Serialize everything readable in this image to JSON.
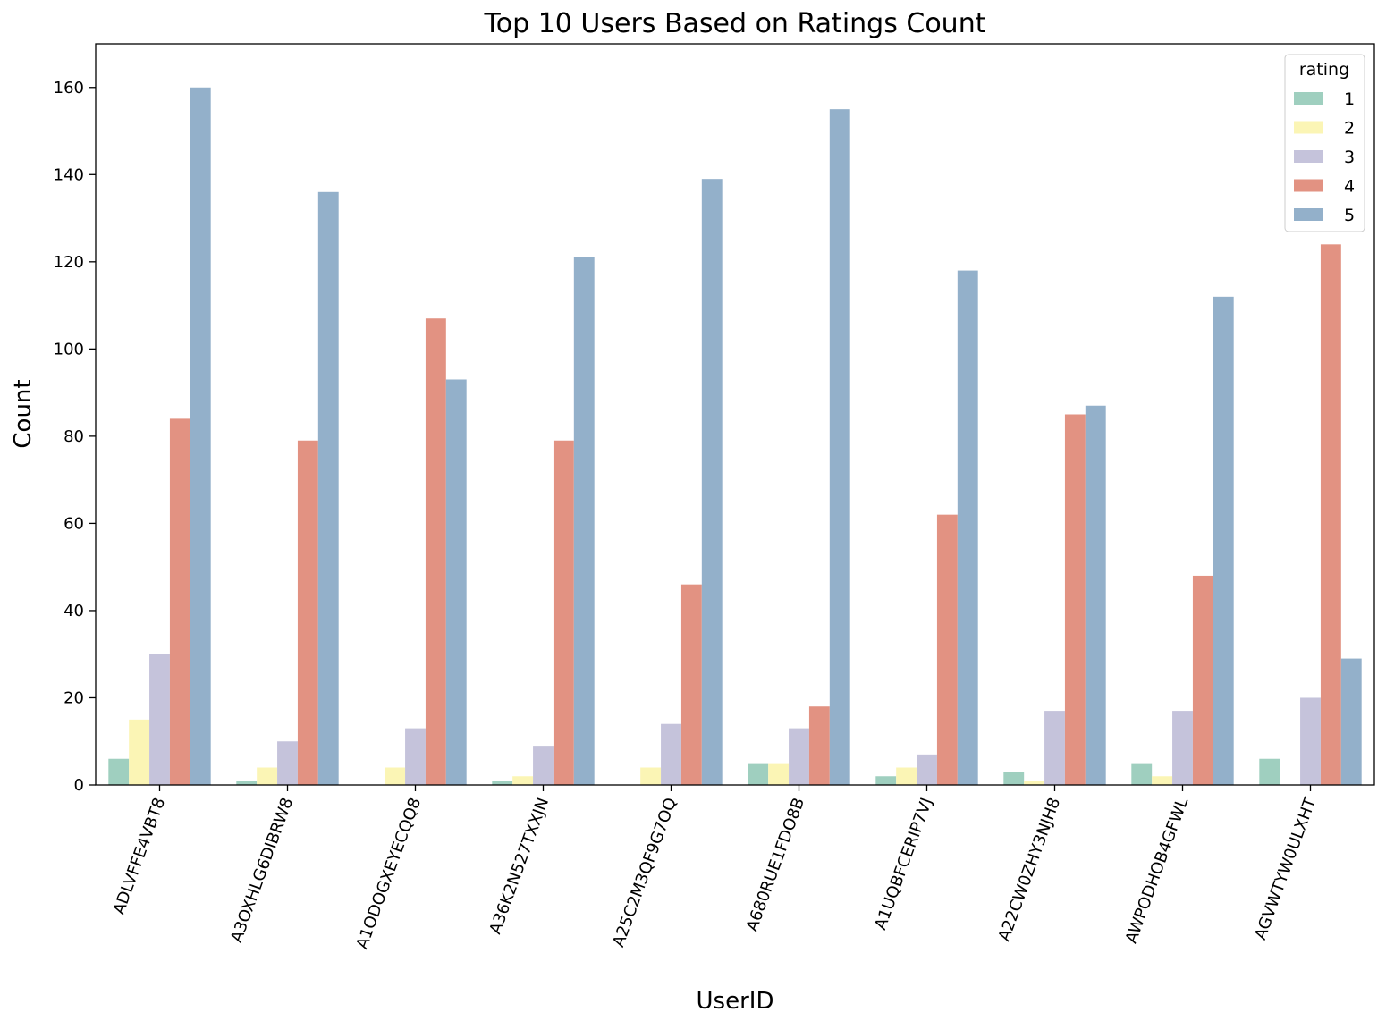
{
  "chart_data": {
    "type": "bar",
    "title": "Top 10 Users Based on Ratings Count",
    "xlabel": "UserID",
    "ylabel": "Count",
    "ylim": [
      0,
      170
    ],
    "yticks": [
      "0",
      "20",
      "40",
      "60",
      "80",
      "100",
      "120",
      "140",
      "160"
    ],
    "grid": false,
    "categories": [
      "ADLVFFE4VBT8",
      "A3OXHLG6DIBRW8",
      "A1ODOGXEYECQQ8",
      "A36K2N527TXXJN",
      "A25C2M3QF9G7OQ",
      "A680RUE1FDO8B",
      "A1UQBFCERIP7VJ",
      "A22CW0ZHY3NJH8",
      "AWPODHOB4GFWL",
      "AGVWTYW0ULXHT"
    ],
    "legend": {
      "title": "rating",
      "placement": "top-right"
    },
    "series": [
      {
        "name": "1",
        "color": "#9fcfbf",
        "values": [
          6,
          1,
          0,
          1,
          0,
          5,
          2,
          3,
          5,
          6
        ]
      },
      {
        "name": "2",
        "color": "#fbf5b5",
        "values": [
          15,
          4,
          4,
          2,
          4,
          5,
          4,
          1,
          2,
          0
        ]
      },
      {
        "name": "3",
        "color": "#c5c3db",
        "values": [
          30,
          10,
          13,
          9,
          14,
          13,
          7,
          17,
          17,
          20
        ]
      },
      {
        "name": "4",
        "color": "#e29282",
        "values": [
          84,
          79,
          107,
          79,
          46,
          18,
          62,
          85,
          48,
          124
        ]
      },
      {
        "name": "5",
        "color": "#93b0ca",
        "values": [
          160,
          136,
          93,
          121,
          139,
          155,
          118,
          87,
          112,
          29
        ]
      }
    ]
  }
}
